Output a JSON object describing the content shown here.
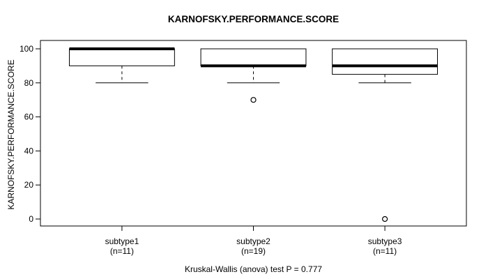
{
  "title": "KARNOFSKY.PERFORMANCE.SCORE",
  "footer": "Kruskal-Wallis (anova) test P = 0.777",
  "chart_data": {
    "type": "boxplot",
    "title": "KARNOFSKY.PERFORMANCE.SCORE",
    "ylabel": "KARNOFSKY.PERFORMANCE.SCORE",
    "xlabel": "",
    "ylim": [
      0,
      100
    ],
    "yticks": [
      0,
      20,
      40,
      60,
      80,
      100
    ],
    "grid": false,
    "legend": "none",
    "categories": [
      "subtype1",
      "subtype2",
      "subtype3"
    ],
    "category_sublabels": [
      "(n=11)",
      "(n=19)",
      "(n=11)"
    ],
    "series": [
      {
        "name": "subtype1",
        "n": 11,
        "whisker_low": 80,
        "q1": 90,
        "median": 100,
        "q3": 100,
        "whisker_high": 100,
        "outliers": []
      },
      {
        "name": "subtype2",
        "n": 19,
        "whisker_low": 80,
        "q1": 90,
        "median": 90,
        "q3": 100,
        "whisker_high": 100,
        "outliers": [
          70
        ]
      },
      {
        "name": "subtype3",
        "n": 11,
        "whisker_low": 80,
        "q1": 85,
        "median": 90,
        "q3": 100,
        "whisker_high": 100,
        "outliers": [
          0
        ]
      }
    ],
    "annotation": "Kruskal-Wallis (anova) test P = 0.777",
    "colors": {
      "stroke": "#000000",
      "box_fill": "#ffffff",
      "background": "#ffffff"
    }
  }
}
